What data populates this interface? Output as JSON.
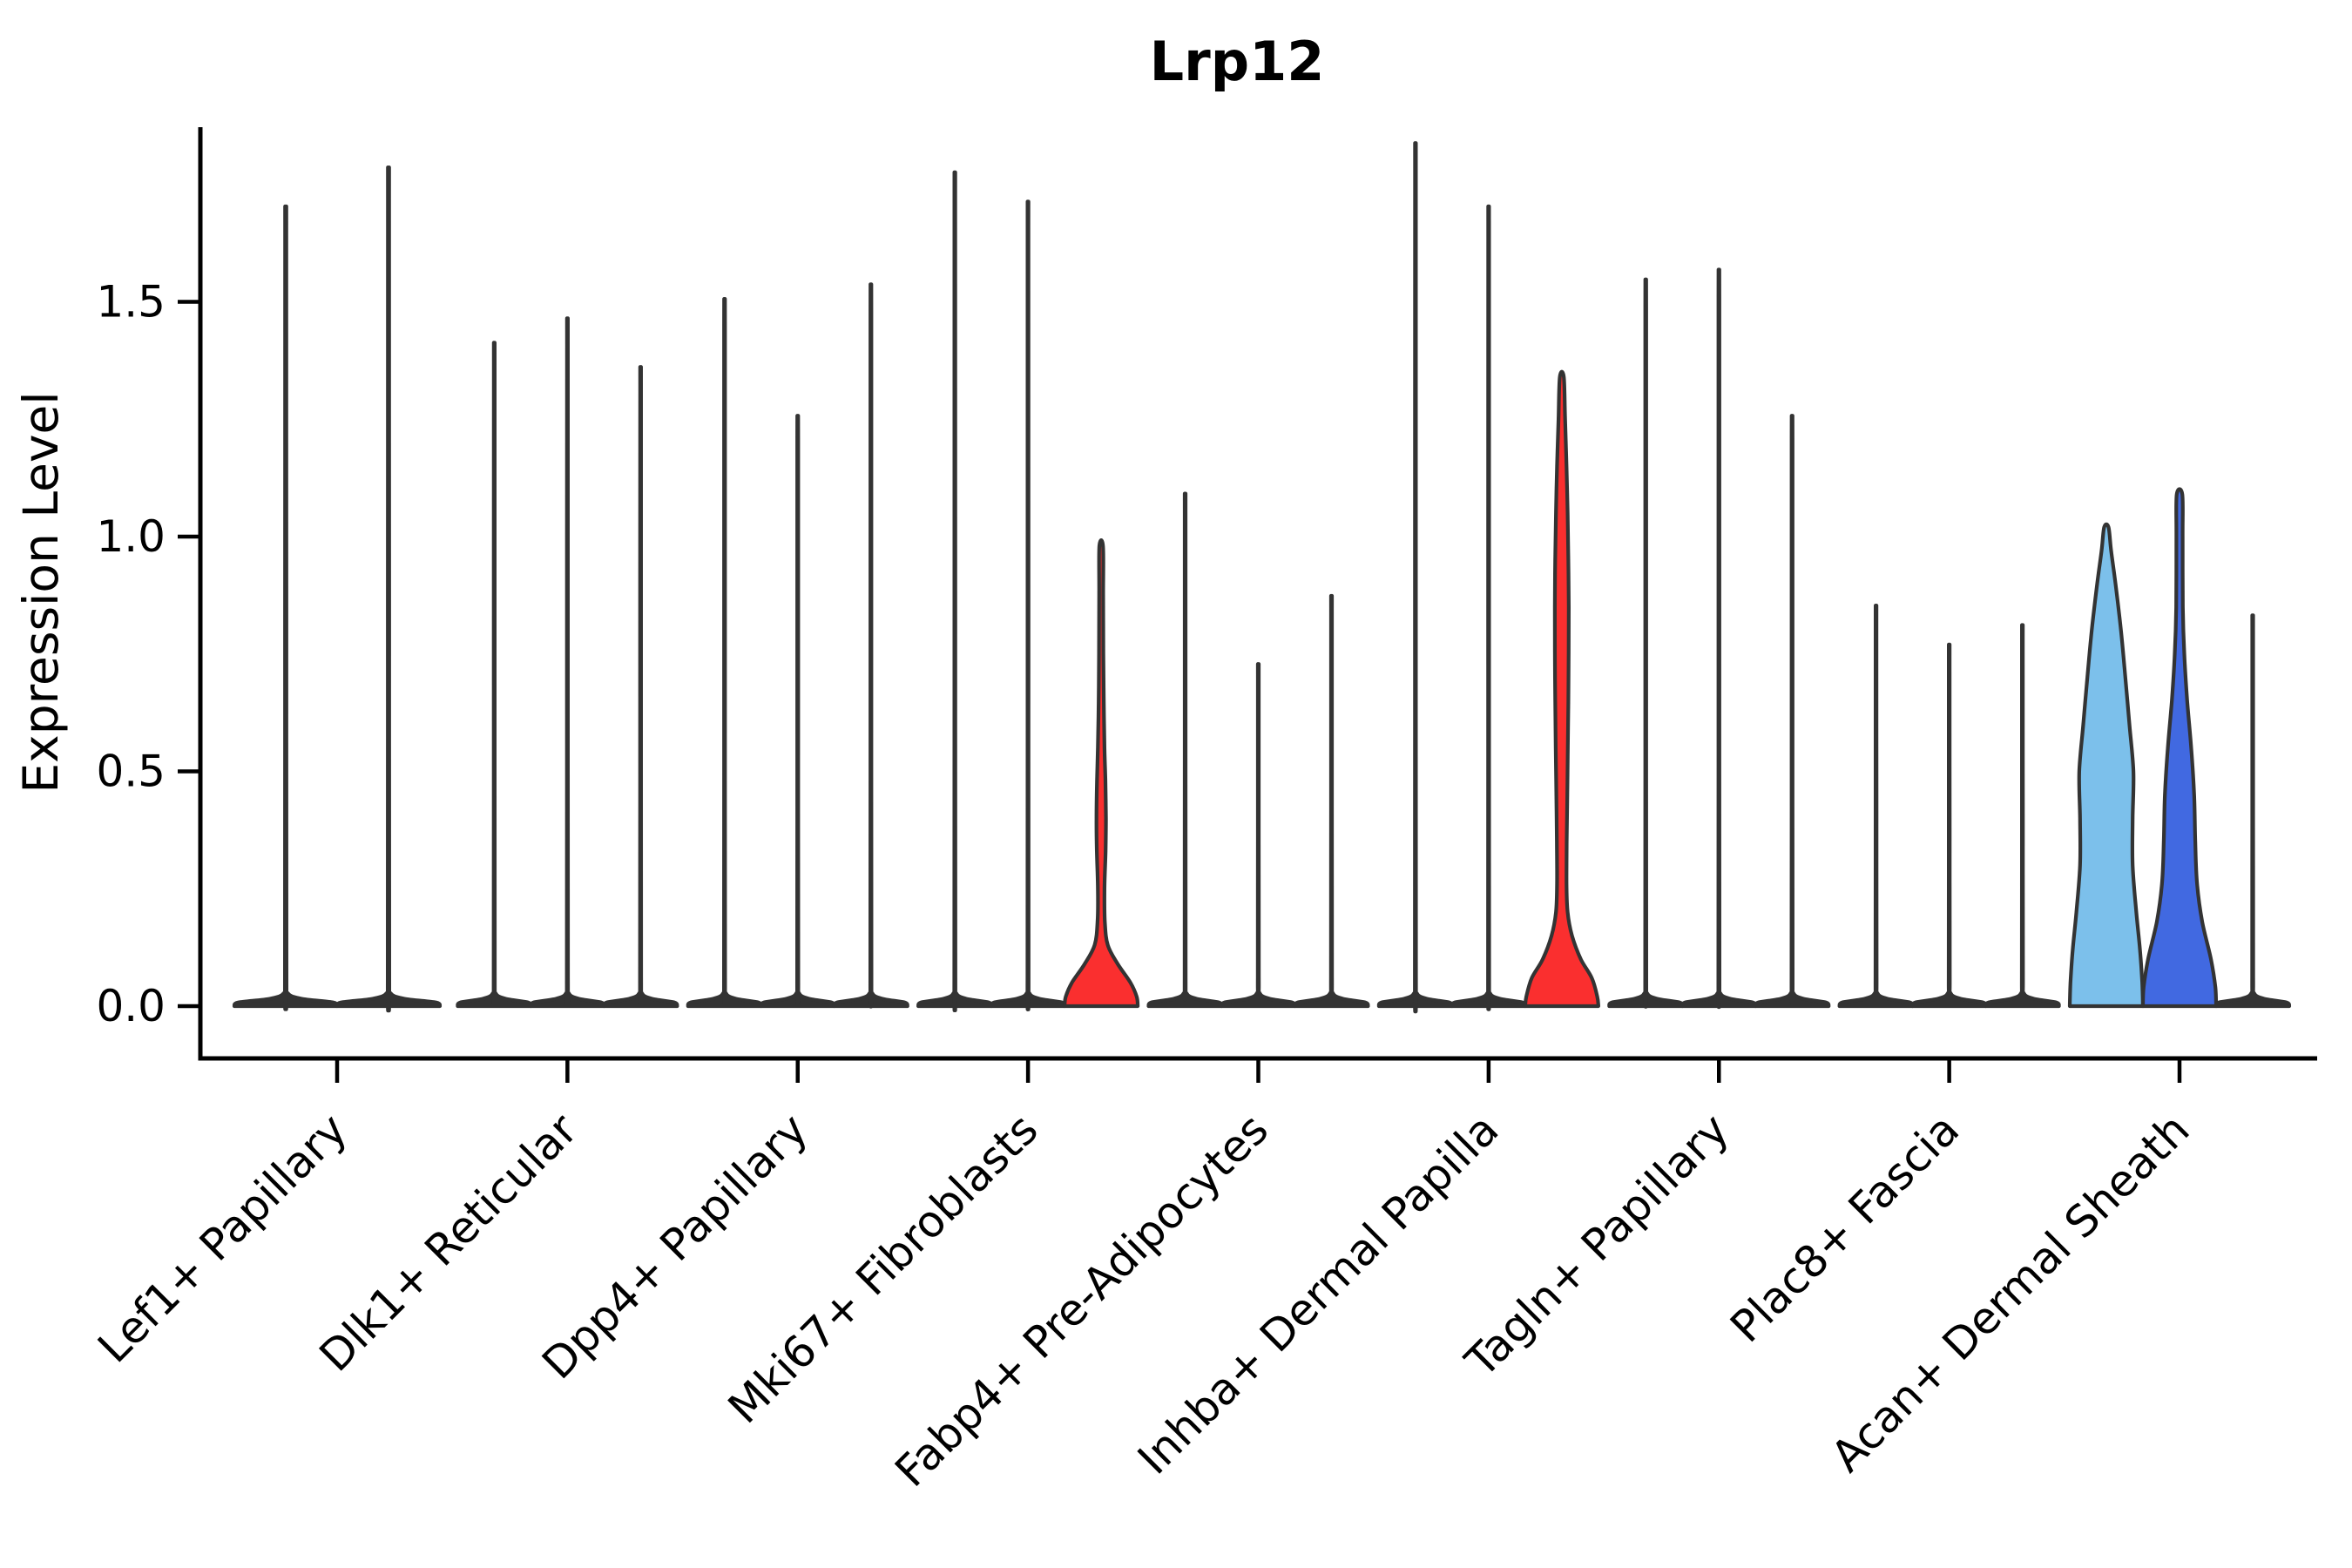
{
  "chart_data": {
    "type": "violin",
    "title": "Lrp12",
    "ylabel": "Expression Level",
    "xlabel": "",
    "grid": false,
    "legend": null,
    "ylim": [
      -0.11,
      1.88
    ],
    "yticks": [
      "0.0",
      "0.5",
      "1.0",
      "1.5"
    ],
    "ytick_values": [
      0.0,
      0.5,
      1.0,
      1.5
    ],
    "categories": [
      "Lef1+ Papillary",
      "Dlk1+ Reticular",
      "Dpp4+ Papillary",
      "Mki67+ Fibroblasts",
      "Fabp4+ Pre-Adipocytes",
      "Inhba+ Dermal Papilla",
      "Tagln+ Papillary",
      "Plac8+ Fascia",
      "Acan+ Dermal Sheath"
    ],
    "colors": {
      "edge": "#333333",
      "spike_fill": "#333333",
      "red": "#FA2F2F",
      "skyblue": "#7CC0EB",
      "royalblue": "#4169E1"
    },
    "series": [
      {
        "category": "Lef1+ Papillary",
        "violins": [
          {
            "max": 1.65,
            "color": "spike",
            "shape": "spike"
          },
          {
            "max": 1.73,
            "color": "spike",
            "shape": "spike"
          }
        ]
      },
      {
        "category": "Dlk1+ Reticular",
        "violins": [
          {
            "max": 1.37,
            "color": "spike",
            "shape": "spike"
          },
          {
            "max": 1.42,
            "color": "spike",
            "shape": "spike"
          },
          {
            "max": 1.32,
            "color": "spike",
            "shape": "spike"
          }
        ]
      },
      {
        "category": "Dpp4+ Papillary",
        "violins": [
          {
            "max": 1.46,
            "color": "spike",
            "shape": "spike"
          },
          {
            "max": 1.22,
            "color": "spike",
            "shape": "spike"
          },
          {
            "max": 1.49,
            "color": "spike",
            "shape": "spike"
          }
        ]
      },
      {
        "category": "Mki67+ Fibroblasts",
        "violins": [
          {
            "max": 1.72,
            "color": "spike",
            "shape": "spike"
          },
          {
            "max": 1.66,
            "color": "spike",
            "shape": "spike"
          },
          {
            "max": 0.98,
            "color": "red",
            "shape": "bulge",
            "profile": [
              [
                0,
                1.0
              ],
              [
                0.02,
                0.97
              ],
              [
                0.05,
                0.8
              ],
              [
                0.09,
                0.45
              ],
              [
                0.13,
                0.18
              ],
              [
                0.18,
                0.1
              ],
              [
                0.25,
                0.09
              ],
              [
                0.33,
                0.12
              ],
              [
                0.4,
                0.13
              ],
              [
                0.48,
                0.115
              ],
              [
                0.55,
                0.09
              ],
              [
                0.65,
                0.07
              ],
              [
                0.75,
                0.06
              ],
              [
                0.88,
                0.055
              ],
              [
                0.98,
                0.05
              ]
            ]
          }
        ]
      },
      {
        "category": "Fabp4+ Pre-Adipocytes",
        "violins": [
          {
            "max": 1.06,
            "color": "spike",
            "shape": "spike"
          },
          {
            "max": 0.71,
            "color": "spike",
            "shape": "spike"
          },
          {
            "max": 0.85,
            "color": "spike",
            "shape": "spike"
          }
        ]
      },
      {
        "category": "Inhba+ Dermal Papilla",
        "violins": [
          {
            "max": 1.78,
            "color": "spike",
            "shape": "spike"
          },
          {
            "max": 1.65,
            "color": "spike",
            "shape": "spike"
          },
          {
            "max": 1.34,
            "color": "red",
            "shape": "bulge",
            "profile": [
              [
                0,
                1.0
              ],
              [
                0.02,
                0.97
              ],
              [
                0.06,
                0.82
              ],
              [
                0.1,
                0.52
              ],
              [
                0.15,
                0.28
              ],
              [
                0.2,
                0.16
              ],
              [
                0.26,
                0.13
              ],
              [
                0.35,
                0.135
              ],
              [
                0.45,
                0.15
              ],
              [
                0.55,
                0.165
              ],
              [
                0.7,
                0.185
              ],
              [
                0.85,
                0.19
              ],
              [
                0.95,
                0.18
              ],
              [
                1.05,
                0.16
              ],
              [
                1.15,
                0.13
              ],
              [
                1.25,
                0.09
              ],
              [
                1.34,
                0.055
              ]
            ]
          }
        ]
      },
      {
        "category": "Tagln+ Papillary",
        "violins": [
          {
            "max": 1.5,
            "color": "spike",
            "shape": "spike"
          },
          {
            "max": 1.52,
            "color": "spike",
            "shape": "spike"
          },
          {
            "max": 1.22,
            "color": "spike",
            "shape": "spike"
          }
        ]
      },
      {
        "category": "Plac8+ Fascia",
        "violins": [
          {
            "max": 0.83,
            "color": "spike",
            "shape": "spike"
          },
          {
            "max": 0.75,
            "color": "spike",
            "shape": "spike"
          },
          {
            "max": 0.79,
            "color": "spike",
            "shape": "spike"
          }
        ]
      },
      {
        "category": "Acan+ Dermal Sheath",
        "violins": [
          {
            "max": 1.02,
            "color": "skyblue",
            "shape": "bulge",
            "profile": [
              [
                0,
                1.0
              ],
              [
                0.05,
                0.98
              ],
              [
                0.12,
                0.92
              ],
              [
                0.2,
                0.82
              ],
              [
                0.3,
                0.72
              ],
              [
                0.4,
                0.72
              ],
              [
                0.5,
                0.74
              ],
              [
                0.6,
                0.63
              ],
              [
                0.7,
                0.52
              ],
              [
                0.8,
                0.4
              ],
              [
                0.9,
                0.25
              ],
              [
                0.97,
                0.13
              ],
              [
                1.02,
                0.06
              ]
            ]
          },
          {
            "max": 1.09,
            "color": "royalblue",
            "shape": "bulge",
            "profile": [
              [
                0,
                1.0
              ],
              [
                0.04,
                0.98
              ],
              [
                0.1,
                0.86
              ],
              [
                0.18,
                0.62
              ],
              [
                0.26,
                0.48
              ],
              [
                0.35,
                0.43
              ],
              [
                0.45,
                0.4
              ],
              [
                0.55,
                0.32
              ],
              [
                0.65,
                0.21
              ],
              [
                0.75,
                0.13
              ],
              [
                0.85,
                0.09
              ],
              [
                1.0,
                0.085
              ],
              [
                1.09,
                0.075
              ]
            ]
          },
          {
            "max": 0.81,
            "color": "spike",
            "shape": "spike"
          }
        ]
      }
    ]
  }
}
